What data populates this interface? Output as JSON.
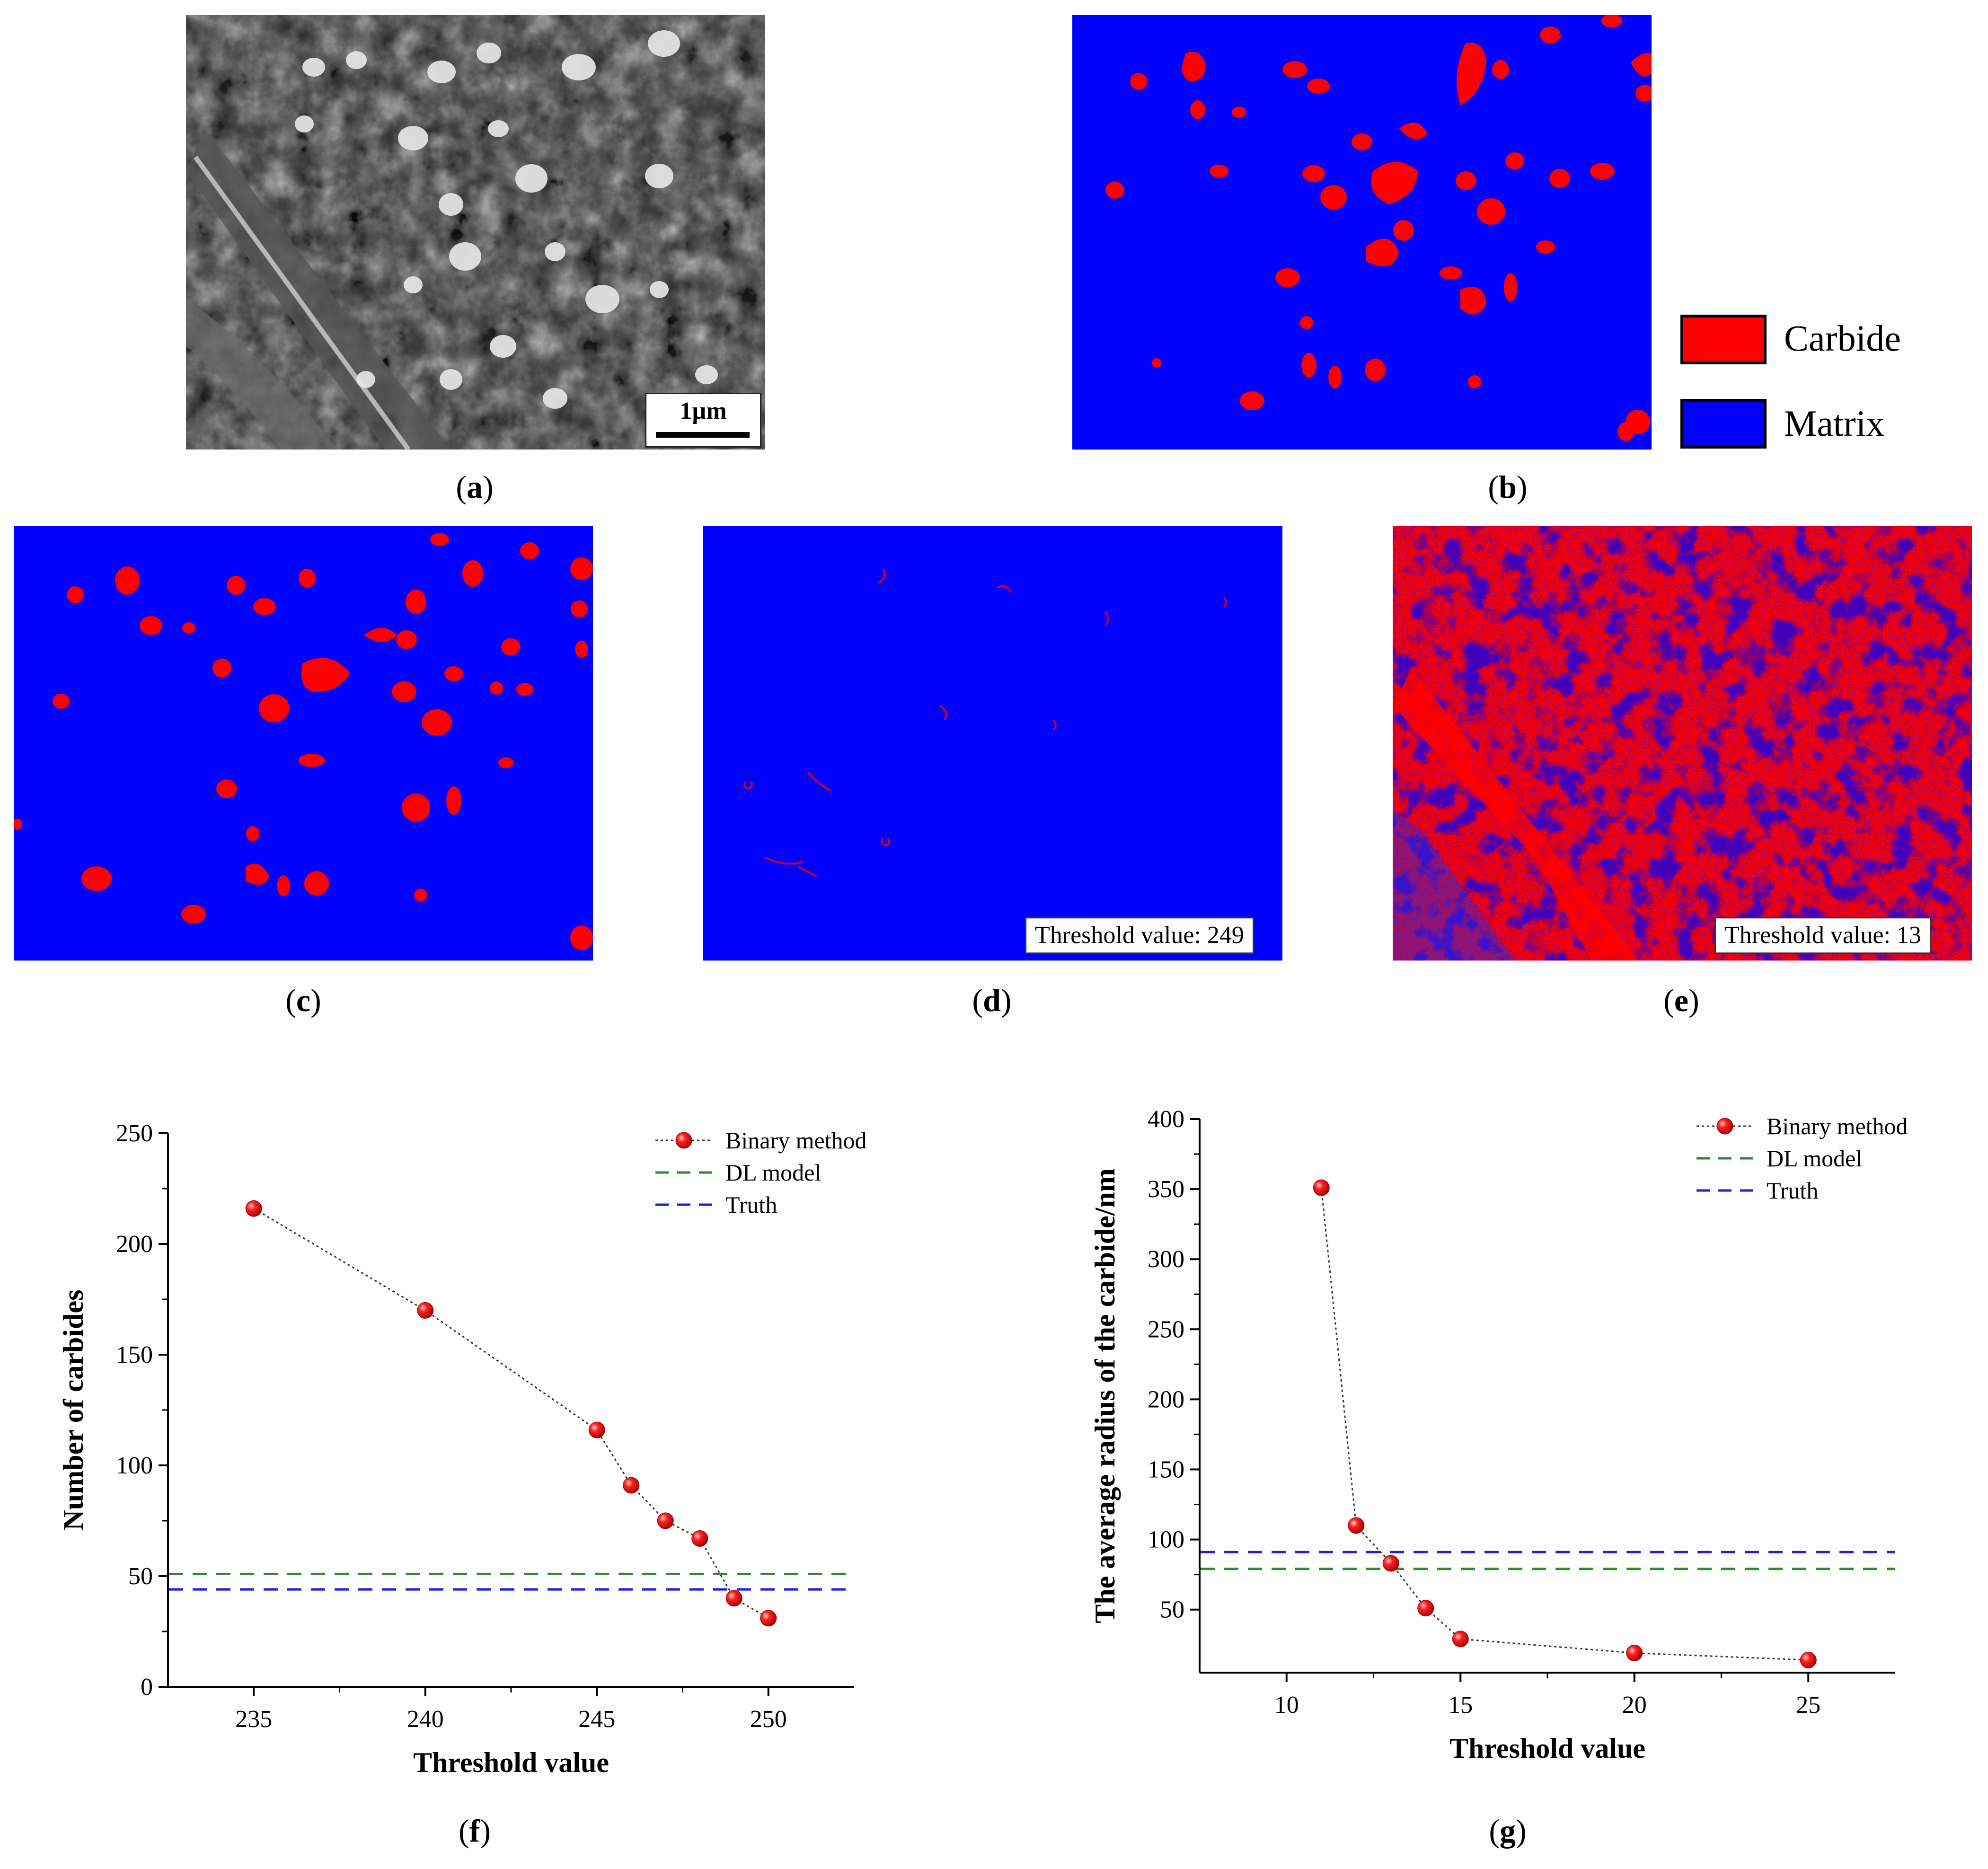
{
  "panels": {
    "a": {
      "caption": "a",
      "scale_bar": "1µm"
    },
    "b": {
      "caption": "b",
      "legend": [
        {
          "label": "Carbide",
          "color": "#ff0000"
        },
        {
          "label": "Matrix",
          "color": "#0000ff"
        }
      ]
    },
    "c": {
      "caption": "c"
    },
    "d": {
      "caption": "d",
      "threshold_label": "Threshold value: 249"
    },
    "e": {
      "caption": "e",
      "threshold_label": "Threshold value: 13"
    },
    "f": {
      "caption": "f"
    },
    "g": {
      "caption": "g"
    }
  },
  "colors": {
    "carbide": "#ff0000",
    "matrix": "#0000ff",
    "dl": "#2e8b2e",
    "truth": "#1f1fe0",
    "binary": "#e00000"
  },
  "chart_data": [
    {
      "id": "f",
      "type": "line",
      "title": "",
      "xlabel": "Threshold value",
      "ylabel": "Number of carbides",
      "xlim": [
        232.5,
        252.5
      ],
      "ylim": [
        0,
        250
      ],
      "xticks": [
        235,
        240,
        245,
        250
      ],
      "yticks": [
        0,
        50,
        100,
        150,
        200,
        250
      ],
      "legend_position": "top-right",
      "series": [
        {
          "name": "Binary method",
          "style": "dotted-markers",
          "x": [
            235,
            240,
            245,
            246,
            247,
            248,
            249,
            250
          ],
          "y": [
            216,
            170,
            116,
            91,
            75,
            67,
            40,
            31
          ]
        },
        {
          "name": "DL model",
          "style": "dashed-hline",
          "y": 51
        },
        {
          "name": "Truth",
          "style": "dashed-hline",
          "y": 44
        }
      ]
    },
    {
      "id": "g",
      "type": "line",
      "title": "",
      "xlabel": "Threshold value",
      "ylabel": "The average radius of the carbide/nm",
      "xlim": [
        7.5,
        27.5
      ],
      "ylim": [
        5,
        400
      ],
      "xticks": [
        10,
        15,
        20,
        25
      ],
      "yticks": [
        50,
        100,
        150,
        200,
        250,
        300,
        350,
        400
      ],
      "legend_position": "top-right",
      "series": [
        {
          "name": "Binary method",
          "style": "dotted-markers",
          "x": [
            11,
            12,
            13,
            14,
            15,
            20,
            25
          ],
          "y": [
            351,
            110,
            83,
            51,
            29,
            19,
            14
          ]
        },
        {
          "name": "DL model",
          "style": "dashed-hline",
          "y": 79
        },
        {
          "name": "Truth",
          "style": "dashed-hline",
          "y": 91
        }
      ]
    }
  ]
}
